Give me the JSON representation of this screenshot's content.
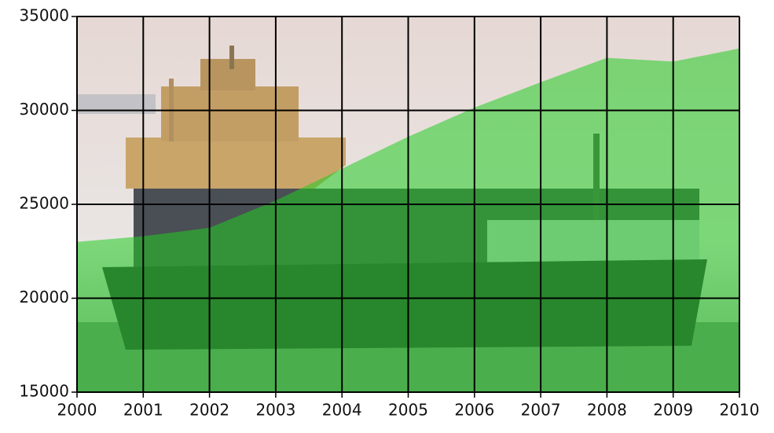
{
  "chart_data": {
    "type": "area",
    "x": [
      2000,
      2001,
      2002,
      2003,
      2004,
      2005,
      2006,
      2007,
      2008,
      2009,
      2010
    ],
    "values": [
      23000,
      23300,
      23750,
      25200,
      26900,
      28600,
      30150,
      31500,
      32800,
      32600,
      33300
    ],
    "color": "#22cc22",
    "xlim": [
      2000,
      2010
    ],
    "xticks": [
      2000,
      2001,
      2002,
      2003,
      2004,
      2005,
      2006,
      2007,
      2008,
      2009,
      2010
    ],
    "ylim": [
      15000,
      35000
    ],
    "yticks": [
      15000,
      20000,
      25000,
      30000,
      35000
    ],
    "grid": true
  }
}
